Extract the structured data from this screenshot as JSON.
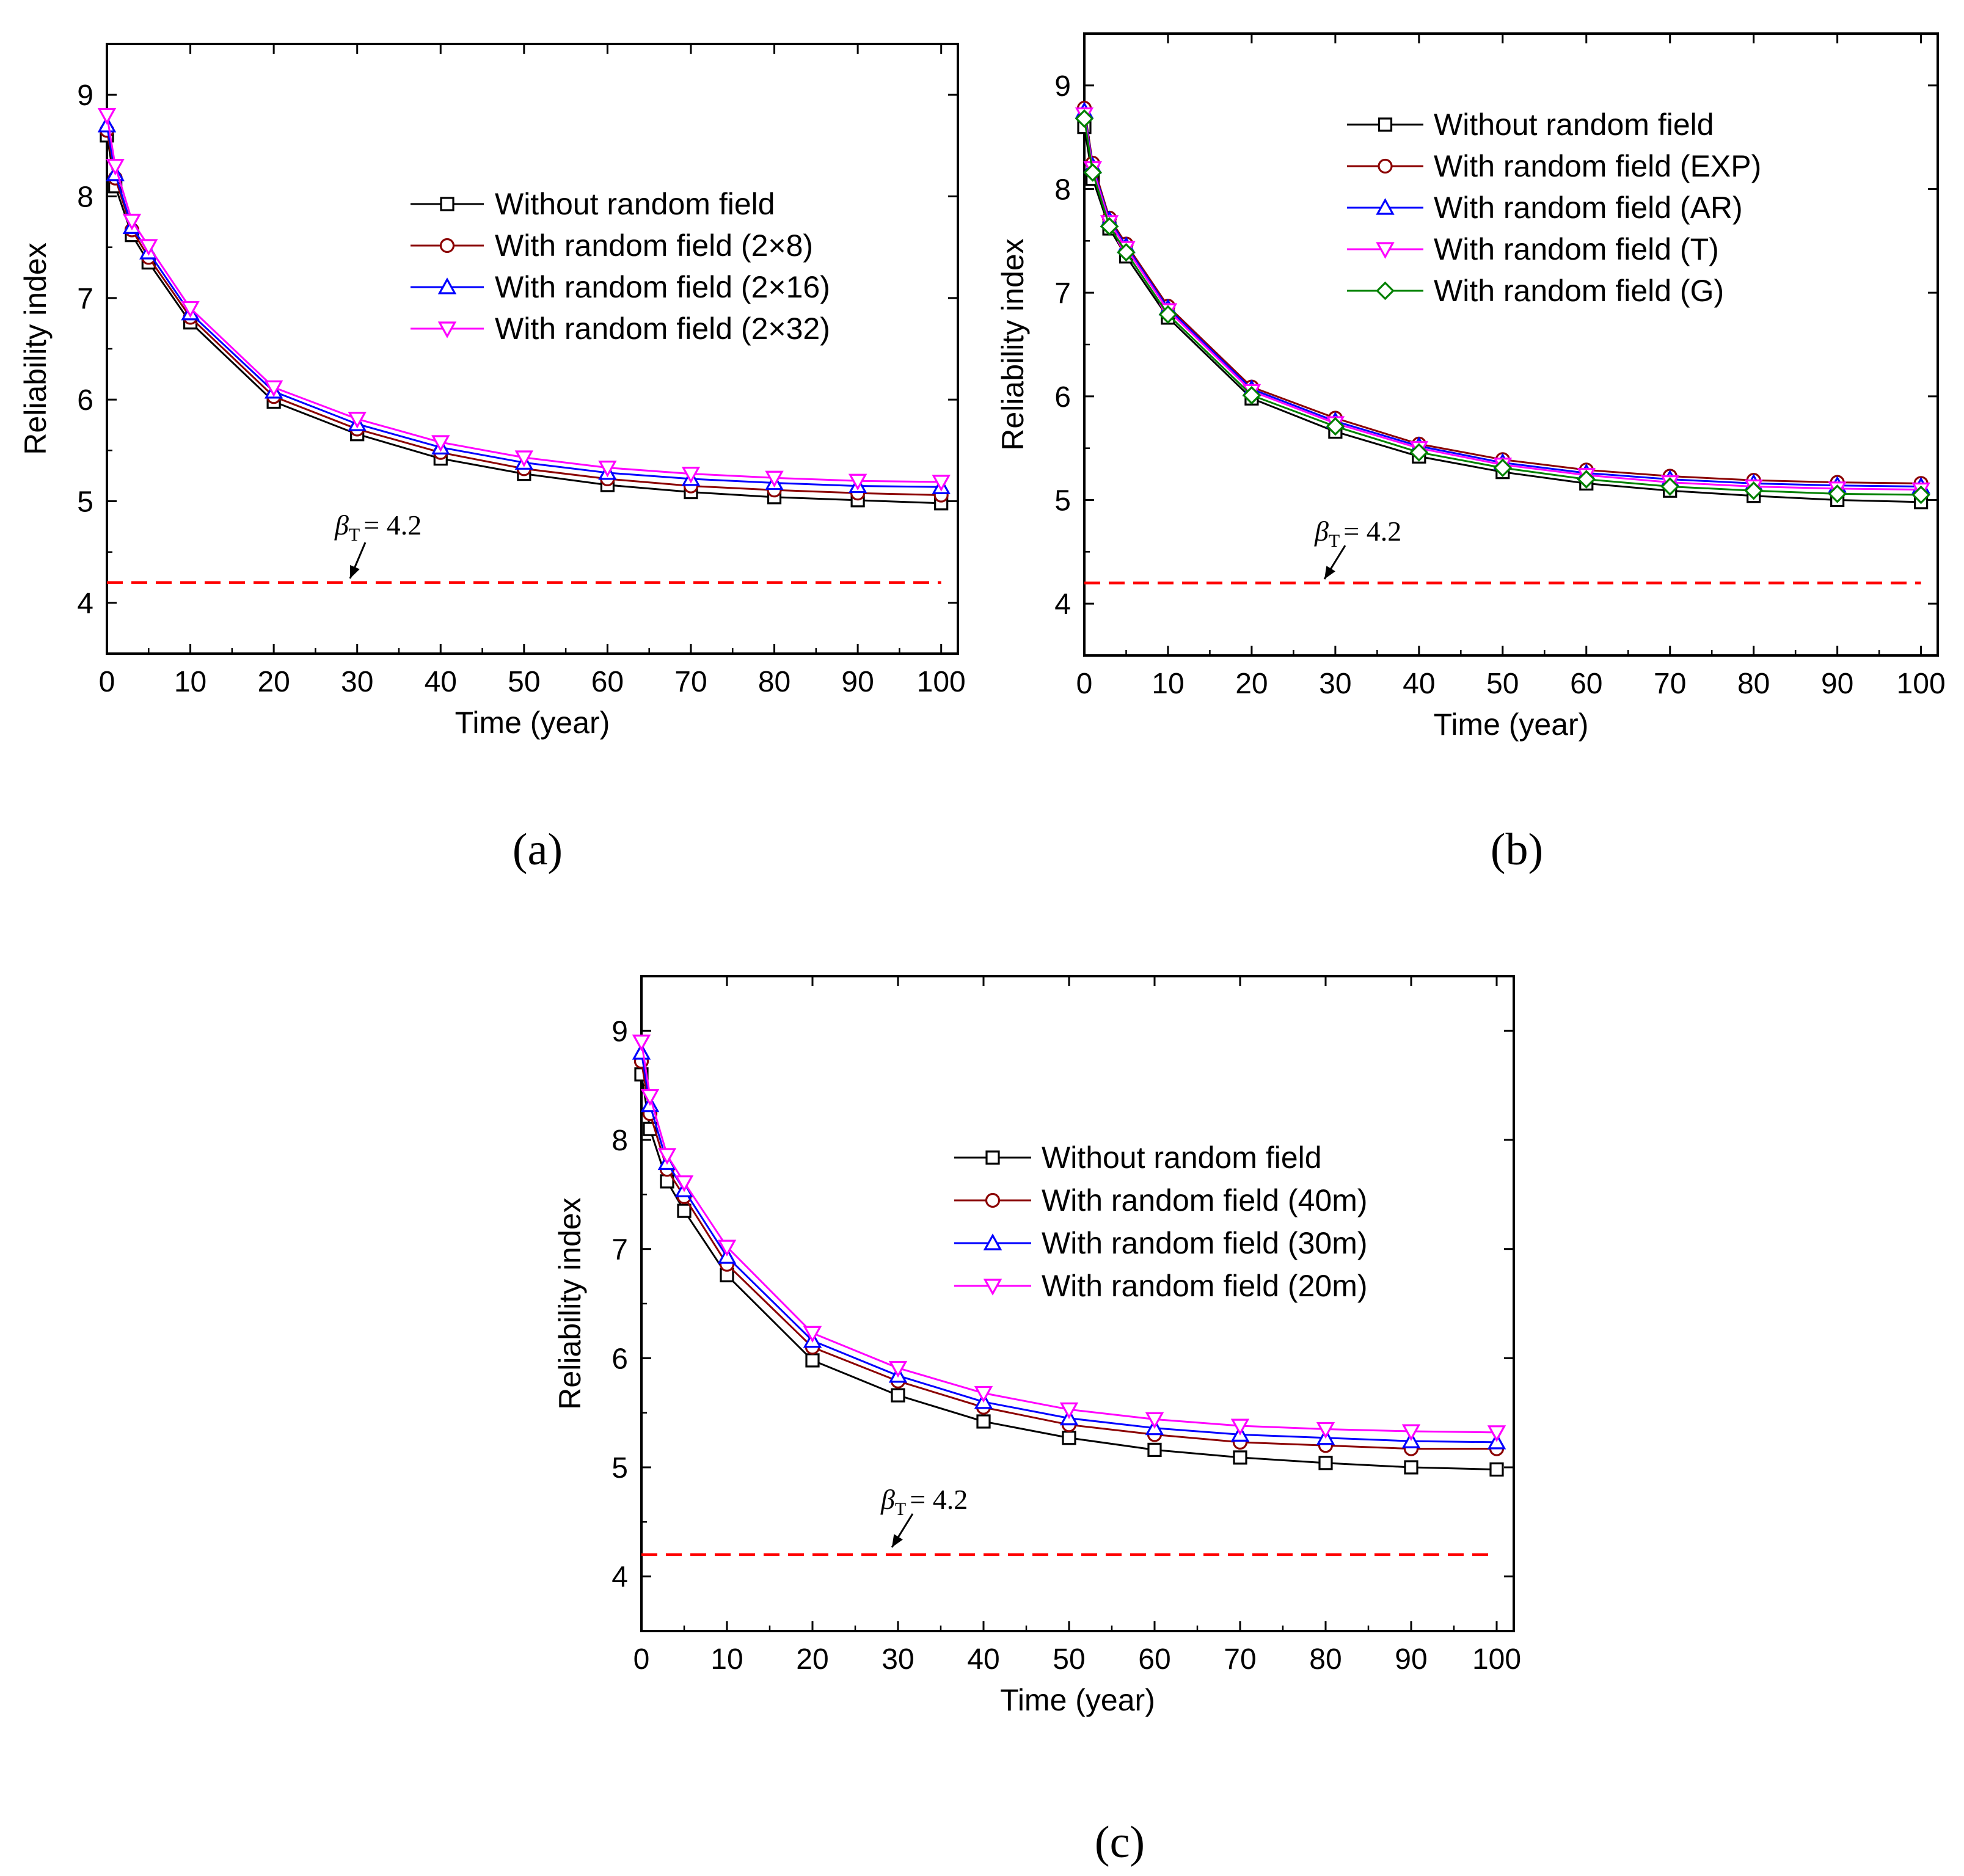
{
  "figure": {
    "panels": [
      "(a)",
      "(b)",
      "(c)"
    ]
  },
  "chart_data": [
    {
      "panel": "(a)",
      "type": "line",
      "xlabel": "Time (year)",
      "ylabel": "Reliability index",
      "xlim": [
        0,
        102
      ],
      "ylim": [
        3.5,
        9.5
      ],
      "xticks": [
        0,
        10,
        20,
        30,
        40,
        50,
        60,
        70,
        80,
        90,
        100
      ],
      "yticks": [
        4,
        5,
        6,
        7,
        8,
        9
      ],
      "legend_position": "top-right",
      "threshold": {
        "label": "= 4.2",
        "symbol": "β",
        "subscript": "T",
        "value": 4.2,
        "color": "#ff0000",
        "pointer_x": 30
      },
      "x": [
        0,
        1,
        3,
        5,
        10,
        20,
        30,
        40,
        50,
        60,
        70,
        80,
        90,
        100
      ],
      "series": [
        {
          "name": "Without random field",
          "color": "#000000",
          "marker": "square",
          "values": [
            8.6,
            8.1,
            7.62,
            7.35,
            6.76,
            5.98,
            5.66,
            5.42,
            5.27,
            5.16,
            5.09,
            5.04,
            5.01,
            4.98
          ]
        },
        {
          "name": "With random field (2×8)",
          "color": "#8b0000",
          "marker": "circle",
          "values": [
            8.65,
            8.18,
            7.67,
            7.4,
            6.81,
            6.03,
            5.71,
            5.48,
            5.32,
            5.22,
            5.15,
            5.11,
            5.08,
            5.06
          ]
        },
        {
          "name": "With random field (2×16)",
          "color": "#0000ff",
          "marker": "triangle-up",
          "values": [
            8.7,
            8.22,
            7.7,
            7.45,
            6.85,
            6.08,
            5.76,
            5.53,
            5.38,
            5.28,
            5.22,
            5.18,
            5.15,
            5.14
          ]
        },
        {
          "name": "With random field (2×32)",
          "color": "#ff00ff",
          "marker": "triangle-down",
          "values": [
            8.8,
            8.3,
            7.76,
            7.51,
            6.9,
            6.12,
            5.81,
            5.58,
            5.43,
            5.33,
            5.27,
            5.23,
            5.2,
            5.19
          ]
        }
      ]
    },
    {
      "panel": "(b)",
      "type": "line",
      "xlabel": "Time (year)",
      "ylabel": "Reliability index",
      "xlim": [
        0,
        102
      ],
      "ylim": [
        3.5,
        9.5
      ],
      "xticks": [
        0,
        10,
        20,
        30,
        40,
        50,
        60,
        70,
        80,
        90,
        100
      ],
      "yticks": [
        4,
        5,
        6,
        7,
        8,
        9
      ],
      "legend_position": "top-right",
      "threshold": {
        "label": "= 4.2",
        "symbol": "β",
        "subscript": "T",
        "value": 4.2,
        "color": "#ff0000",
        "pointer_x": 30
      },
      "x": [
        0,
        1,
        3,
        5,
        10,
        20,
        30,
        40,
        50,
        60,
        70,
        80,
        90,
        100
      ],
      "series": [
        {
          "name": "Without random field",
          "color": "#000000",
          "marker": "square",
          "values": [
            8.6,
            8.1,
            7.62,
            7.35,
            6.76,
            5.98,
            5.66,
            5.42,
            5.27,
            5.16,
            5.09,
            5.04,
            5.0,
            4.98
          ]
        },
        {
          "name": "With random field (EXP)",
          "color": "#8b0000",
          "marker": "circle",
          "values": [
            8.78,
            8.25,
            7.72,
            7.47,
            6.87,
            6.09,
            5.79,
            5.54,
            5.39,
            5.29,
            5.23,
            5.19,
            5.17,
            5.16
          ]
        },
        {
          "name": "With random field (AR)",
          "color": "#0000ff",
          "marker": "triangle-up",
          "values": [
            8.75,
            8.22,
            7.7,
            7.45,
            6.85,
            6.07,
            5.76,
            5.52,
            5.36,
            5.26,
            5.2,
            5.16,
            5.14,
            5.13
          ]
        },
        {
          "name": "With random field (T)",
          "color": "#ff00ff",
          "marker": "triangle-down",
          "values": [
            8.72,
            8.2,
            7.68,
            7.43,
            6.83,
            6.05,
            5.74,
            5.5,
            5.34,
            5.24,
            5.17,
            5.13,
            5.11,
            5.1
          ]
        },
        {
          "name": "With random field (G)",
          "color": "#008000",
          "marker": "diamond",
          "values": [
            8.68,
            8.16,
            7.64,
            7.39,
            6.79,
            6.01,
            5.71,
            5.46,
            5.31,
            5.2,
            5.13,
            5.09,
            5.06,
            5.05
          ]
        }
      ]
    },
    {
      "panel": "(c)",
      "type": "line",
      "xlabel": "Time (year)",
      "ylabel": "Reliability index",
      "xlim": [
        0,
        102
      ],
      "ylim": [
        3.5,
        9.5
      ],
      "xticks": [
        0,
        10,
        20,
        30,
        40,
        50,
        60,
        70,
        80,
        90,
        100
      ],
      "yticks": [
        4,
        5,
        6,
        7,
        8,
        9
      ],
      "legend_position": "right",
      "threshold": {
        "label": "= 4.2",
        "symbol": "β",
        "subscript": "T",
        "value": 4.2,
        "color": "#ff0000",
        "pointer_x": 30
      },
      "x": [
        0,
        1,
        3,
        5,
        10,
        20,
        30,
        40,
        50,
        60,
        70,
        80,
        90,
        100
      ],
      "series": [
        {
          "name": "Without random field",
          "color": "#000000",
          "marker": "square",
          "values": [
            8.6,
            8.1,
            7.62,
            7.35,
            6.76,
            5.98,
            5.66,
            5.42,
            5.27,
            5.16,
            5.09,
            5.04,
            5.0,
            4.98
          ]
        },
        {
          "name": "With random field (40m)",
          "color": "#8b0000",
          "marker": "circle",
          "values": [
            8.72,
            8.24,
            7.73,
            7.48,
            6.86,
            6.1,
            5.79,
            5.55,
            5.39,
            5.3,
            5.23,
            5.2,
            5.17,
            5.17
          ]
        },
        {
          "name": "With random field (30m)",
          "color": "#0000ff",
          "marker": "triangle-up",
          "values": [
            8.8,
            8.32,
            7.79,
            7.54,
            6.93,
            6.16,
            5.84,
            5.6,
            5.45,
            5.36,
            5.3,
            5.27,
            5.24,
            5.23
          ]
        },
        {
          "name": "With random field (20m)",
          "color": "#ff00ff",
          "marker": "triangle-down",
          "values": [
            8.9,
            8.4,
            7.86,
            7.61,
            7.02,
            6.23,
            5.91,
            5.68,
            5.53,
            5.44,
            5.38,
            5.35,
            5.33,
            5.32
          ]
        }
      ]
    }
  ]
}
